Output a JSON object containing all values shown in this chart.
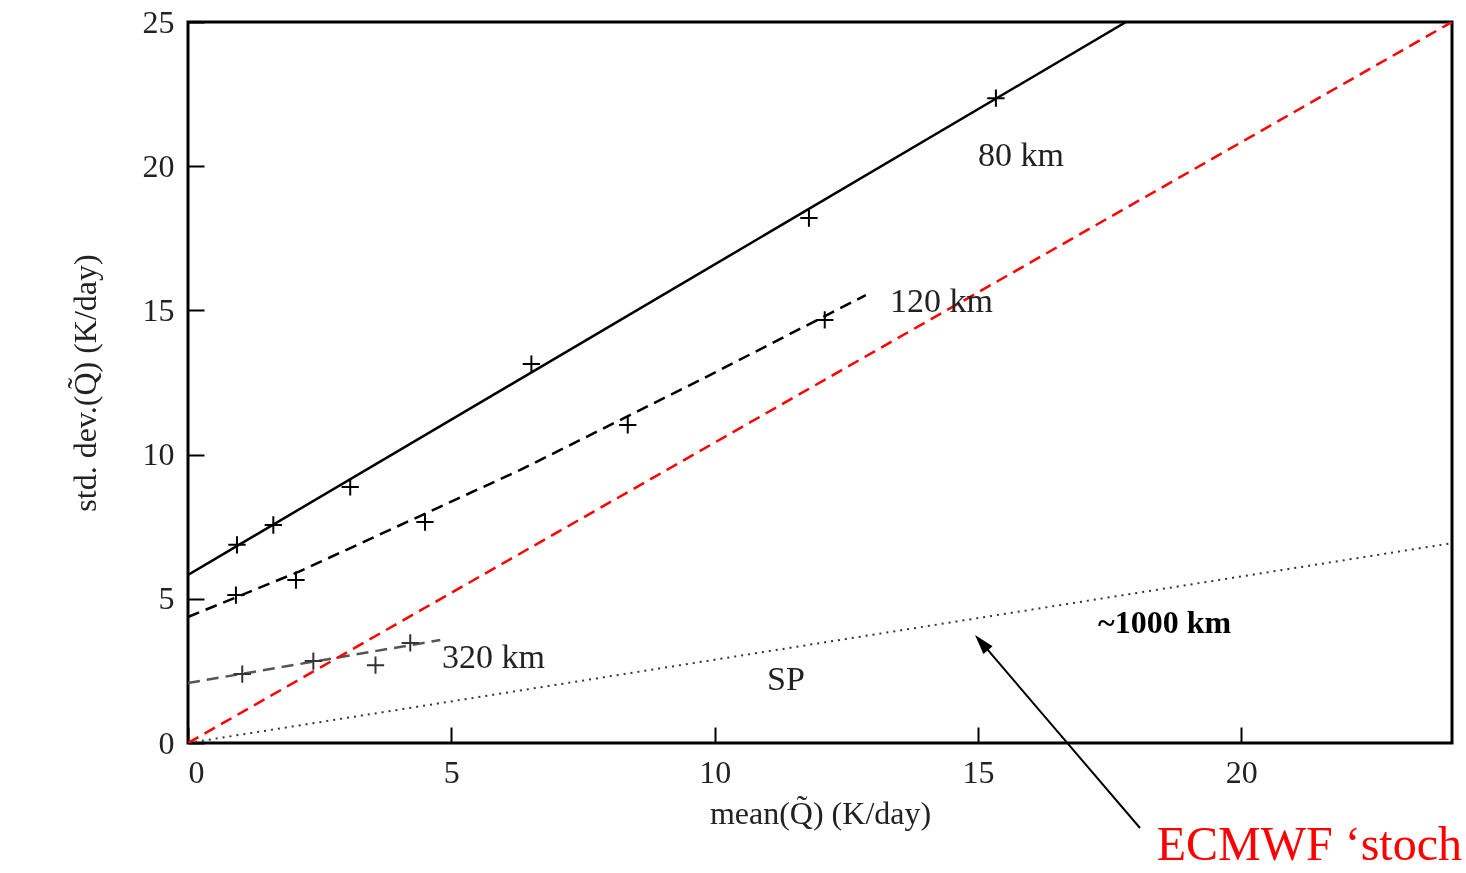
{
  "chart_data": {
    "type": "line",
    "xlabel": "mean(Q̃) (K/day)",
    "ylabel": "std. dev.(Q̃) (K/day)",
    "xlim": [
      0,
      24
    ],
    "ylim": [
      0,
      25
    ],
    "xticks": [
      0,
      5,
      10,
      15,
      20
    ],
    "yticks": [
      0,
      5,
      10,
      15,
      20,
      25
    ],
    "grid": false,
    "series": [
      {
        "color": "#000000",
        "line_style": "solid",
        "marker": "none",
        "x": [
          0,
          17.81
        ],
        "values": [
          5.83,
          25
        ]
      },
      {
        "type": "scatter",
        "color": "#000000",
        "marker": "cross",
        "x": [
          0.93,
          1.62,
          3.08,
          6.52,
          11.79,
          15.34
        ],
        "values": [
          6.87,
          7.56,
          8.88,
          13.14,
          18.2,
          22.36
        ]
      },
      {
        "color": "#000000",
        "line_style": "dashed",
        "marker": "none",
        "x": [
          0,
          2.13,
          6.31,
          9.73,
          12.87
        ],
        "values": [
          4.37,
          5.96,
          9.47,
          12.59,
          15.53
        ]
      },
      {
        "type": "scatter",
        "color": "#000000",
        "marker": "cross",
        "x": [
          0.91,
          2.05,
          4.5,
          8.35,
          12.09
        ],
        "values": [
          5.13,
          5.65,
          7.66,
          11.03,
          14.67
        ]
      },
      {
        "color": "#555555",
        "line_style": "dashed",
        "marker": "none",
        "x": [
          0,
          4.79
        ],
        "values": [
          2.08,
          3.57
        ]
      },
      {
        "type": "scatter",
        "color": "#333333",
        "marker": "cross",
        "x": [
          1.03,
          2.38,
          3.56,
          4.22
        ],
        "values": [
          2.39,
          2.84,
          2.7,
          3.47
        ]
      },
      {
        "color": "#333333",
        "line_style": "dotted",
        "marker": "none",
        "x": [
          0,
          24
        ],
        "values": [
          0,
          6.93
        ]
      },
      {
        "color": "#ff0000",
        "line_style": "dashed",
        "marker": "none",
        "x": [
          0,
          24
        ],
        "values": [
          0,
          25
        ]
      }
    ],
    "annotations": [
      "80 km",
      "120 km",
      "320 km",
      "SP",
      "~1000 km",
      "ECMWF ‘stoch"
    ]
  }
}
